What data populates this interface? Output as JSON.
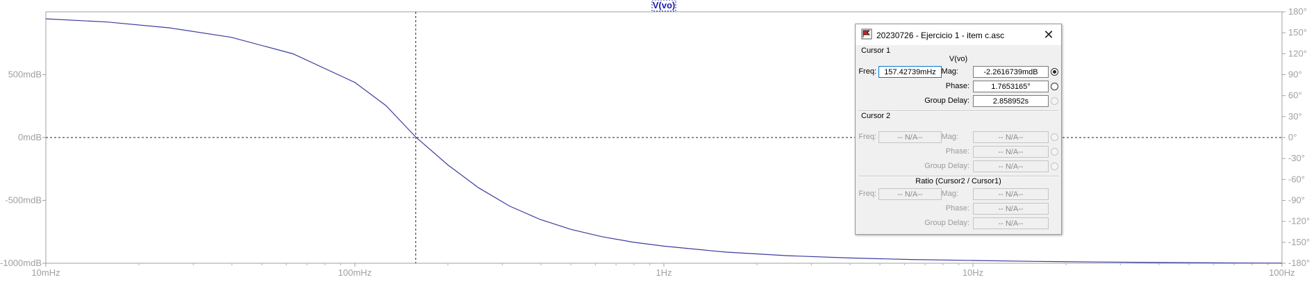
{
  "chart_data": {
    "type": "line",
    "title": "V(vo)",
    "x_scale": "log",
    "xlim": [
      0.01,
      100
    ],
    "x_tick_labels": [
      "10mHz",
      "100mHz",
      "1Hz",
      "10Hz",
      "100Hz"
    ],
    "x_tick_values": [
      0.01,
      0.1,
      1,
      10,
      100
    ],
    "ylim": [
      -1000,
      1000
    ],
    "y_unit": "mdB",
    "y_tick_labels": [
      "-1000mdB",
      "-500mdB",
      "0mdB",
      "500mdB"
    ],
    "y_tick_values": [
      -1000,
      -500,
      0,
      500
    ],
    "y2lim": [
      -180,
      180
    ],
    "y2_tick_labels": [
      "-180°",
      "-150°",
      "-120°",
      "-90°",
      "-60°",
      "-30°",
      "0°",
      "30°",
      "60°",
      "90°",
      "120°",
      "150°",
      "180°"
    ],
    "y2_tick_values": [
      -180,
      -150,
      -120,
      -90,
      -60,
      -30,
      0,
      30,
      60,
      90,
      120,
      150,
      180
    ],
    "cursor_x": 0.15742739,
    "series": [
      {
        "name": "V(vo)",
        "color": "#3b3b9e",
        "x": [
          0.01,
          0.0158,
          0.025,
          0.0398,
          0.0631,
          0.1,
          0.126,
          0.158,
          0.2,
          0.251,
          0.316,
          0.398,
          0.501,
          0.631,
          0.794,
          1,
          1.58,
          2.51,
          3.98,
          6.31,
          10,
          15.8,
          25.1,
          39.8,
          63.1,
          100
        ],
        "y": [
          944,
          919,
          873,
          797,
          666,
          438,
          254,
          0,
          -218,
          -399,
          -544,
          -652,
          -731,
          -789,
          -832,
          -864,
          -911,
          -940,
          -958,
          -970,
          -978,
          -985,
          -990,
          -994,
          -997,
          -999
        ]
      }
    ]
  },
  "cursor_dialog": {
    "title": "20230726 - Ejercicio 1 - item c.asc",
    "cursor1": {
      "group_label": "Cursor 1",
      "trace": "V(vo)",
      "freq_label": "Freq:",
      "freq_value": "157.42739mHz",
      "mag_label": "Mag:",
      "mag_value": "-2.2616739mdB",
      "phase_label": "Phase:",
      "phase_value": "1.7653165°",
      "gd_label": "Group Delay:",
      "gd_value": "2.858952s"
    },
    "cursor2": {
      "group_label": "Cursor 2",
      "freq_label": "Freq:",
      "freq_value": "-- N/A--",
      "mag_label": "Mag:",
      "mag_value": "-- N/A--",
      "phase_label": "Phase:",
      "phase_value": "-- N/A--",
      "gd_label": "Group Delay:",
      "gd_value": "-- N/A--"
    },
    "ratio": {
      "group_label": "Ratio (Cursor2 / Cursor1)",
      "freq_label": "Freq:",
      "freq_value": "-- N/A--",
      "mag_label": "Mag:",
      "mag_value": "-- N/A--",
      "phase_label": "Phase:",
      "phase_value": "-- N/A--",
      "gd_label": "Group Delay:",
      "gd_value": "-- N/A--"
    },
    "close_icon": "close-icon",
    "app_icon": "ltspice-flag-icon"
  }
}
